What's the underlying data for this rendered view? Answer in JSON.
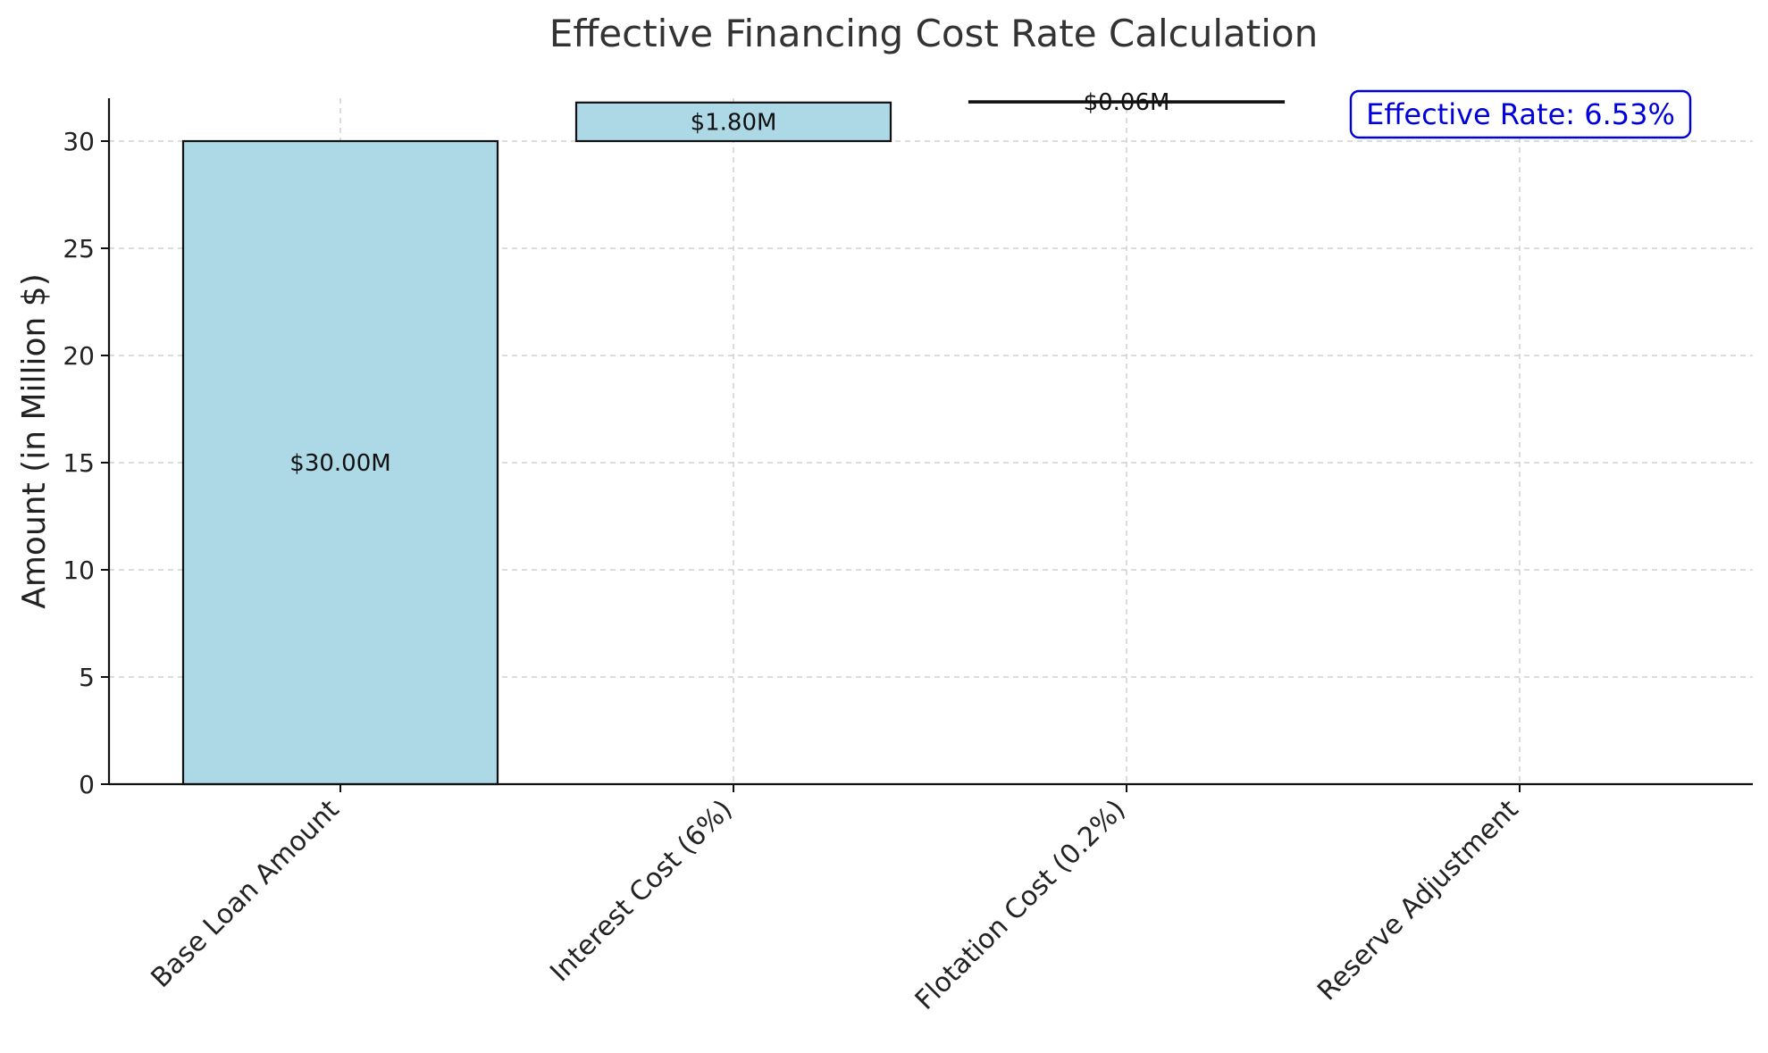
{
  "chart_data": {
    "type": "bar",
    "subtype": "waterfall",
    "title": "Effective Financing Cost Rate Calculation",
    "xlabel": "",
    "ylabel": "Amount (in Million $)",
    "categories": [
      "Base Loan Amount",
      "Interest Cost (6%)",
      "Flotation Cost (0.2%)",
      "Reserve Adjustment"
    ],
    "bars": [
      {
        "category": "Base Loan Amount",
        "base": 0,
        "value": 30.0,
        "label": "$30.00M"
      },
      {
        "category": "Interest Cost (6%)",
        "base": 30.0,
        "value": 1.8,
        "label": "$1.80M"
      },
      {
        "category": "Flotation Cost (0.2%)",
        "base": 31.8,
        "value": 0.06,
        "label": "$0.06M"
      },
      {
        "category": "Reserve Adjustment",
        "base": 31.8,
        "value": 0,
        "label": ""
      }
    ],
    "ylim": [
      0,
      32
    ],
    "yticks": [
      0,
      5,
      10,
      15,
      20,
      25,
      30
    ],
    "grid": true,
    "bar_color": "#ADD8E6",
    "edge_color": "#111111",
    "annotation": {
      "text": "Effective Rate: 6.53%",
      "color": "#0000DD",
      "placement": "top-right"
    }
  }
}
